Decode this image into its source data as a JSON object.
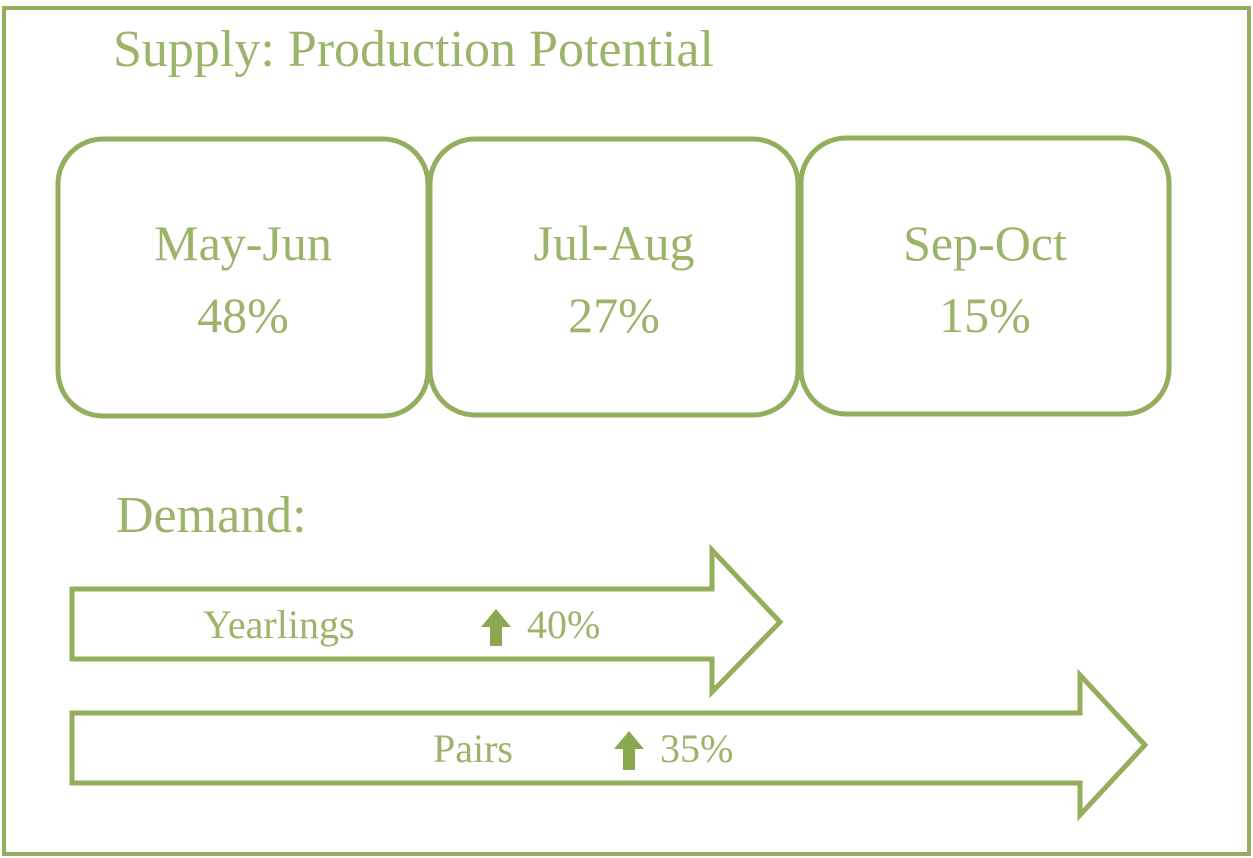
{
  "header": {
    "title": "Supply: Production Potential"
  },
  "boxes": [
    {
      "label": "May-Jun",
      "value": "48%"
    },
    {
      "label": "Jul-Aug",
      "value": "27%"
    },
    {
      "label": "Sep-Oct",
      "value": "15%"
    }
  ],
  "demand": {
    "title": "Demand:",
    "arrows": [
      {
        "label": "Yearlings",
        "value": "40%"
      },
      {
        "label": "Pairs",
        "value": "35%"
      }
    ]
  }
}
